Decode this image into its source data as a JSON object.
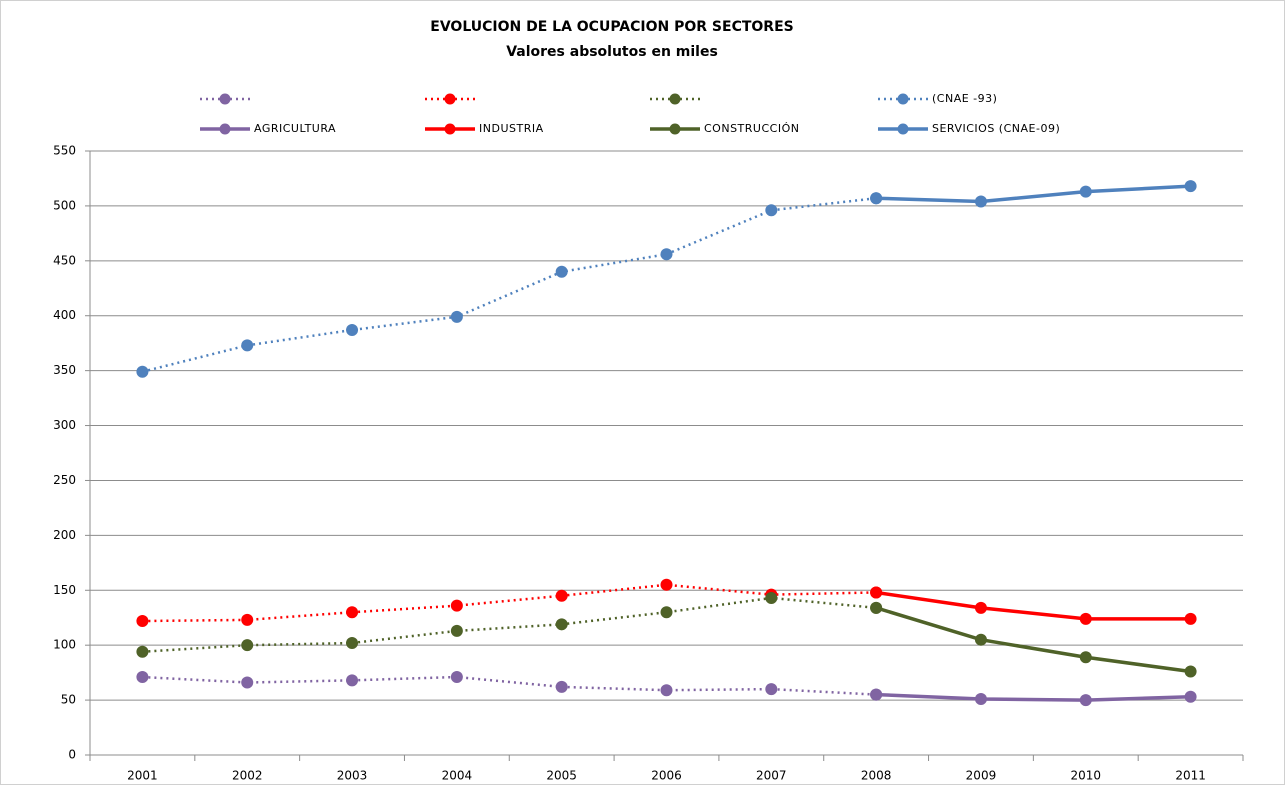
{
  "chart_data": {
    "type": "line",
    "title": "EVOLUCION DE LA OCUPACION POR SECTORES",
    "subtitle": "Valores absolutos en miles",
    "categories": [
      "2001",
      "2002",
      "2003",
      "2004",
      "2005",
      "2006",
      "2007",
      "2008",
      "2009",
      "2010",
      "2011"
    ],
    "ylim": [
      0,
      550
    ],
    "yticks": [
      0,
      50,
      100,
      150,
      200,
      250,
      300,
      350,
      400,
      450,
      500,
      550
    ],
    "grid": true,
    "legend": "top",
    "series": [
      {
        "color": "#8064a2",
        "style": "dotted",
        "values": [
          71,
          66,
          68,
          71,
          62,
          59,
          60,
          55,
          null,
          null,
          null
        ]
      },
      {
        "color": "#ff0000",
        "style": "dotted",
        "values": [
          122,
          123,
          130,
          136,
          145,
          155,
          146,
          148,
          null,
          null,
          null
        ]
      },
      {
        "color": "#4f6228",
        "style": "dotted",
        "values": [
          94,
          100,
          102,
          113,
          119,
          130,
          143,
          134,
          null,
          null,
          null
        ]
      },
      {
        "name": "(CNAE -93)",
        "color": "#4f81bd",
        "style": "dotted",
        "values": [
          349,
          373,
          387,
          399,
          440,
          456,
          496,
          507,
          null,
          null,
          null
        ]
      },
      {
        "name": "AGRICULTURA",
        "color": "#8064a2",
        "style": "solid",
        "values": [
          null,
          null,
          null,
          null,
          null,
          null,
          null,
          55,
          51,
          50,
          53
        ]
      },
      {
        "name": "INDUSTRIA",
        "color": "#ff0000",
        "style": "solid",
        "values": [
          null,
          null,
          null,
          null,
          null,
          null,
          null,
          148,
          134,
          124,
          124
        ]
      },
      {
        "name": "CONSTRUCCIÓN",
        "color": "#4f6228",
        "style": "solid",
        "values": [
          null,
          null,
          null,
          null,
          null,
          null,
          null,
          134,
          105,
          89,
          76
        ]
      },
      {
        "name": "SERVICIOS (CNAE-09)",
        "color": "#4f81bd",
        "style": "solid",
        "values": [
          null,
          null,
          null,
          null,
          null,
          null,
          null,
          507,
          504,
          513,
          518
        ]
      }
    ]
  }
}
